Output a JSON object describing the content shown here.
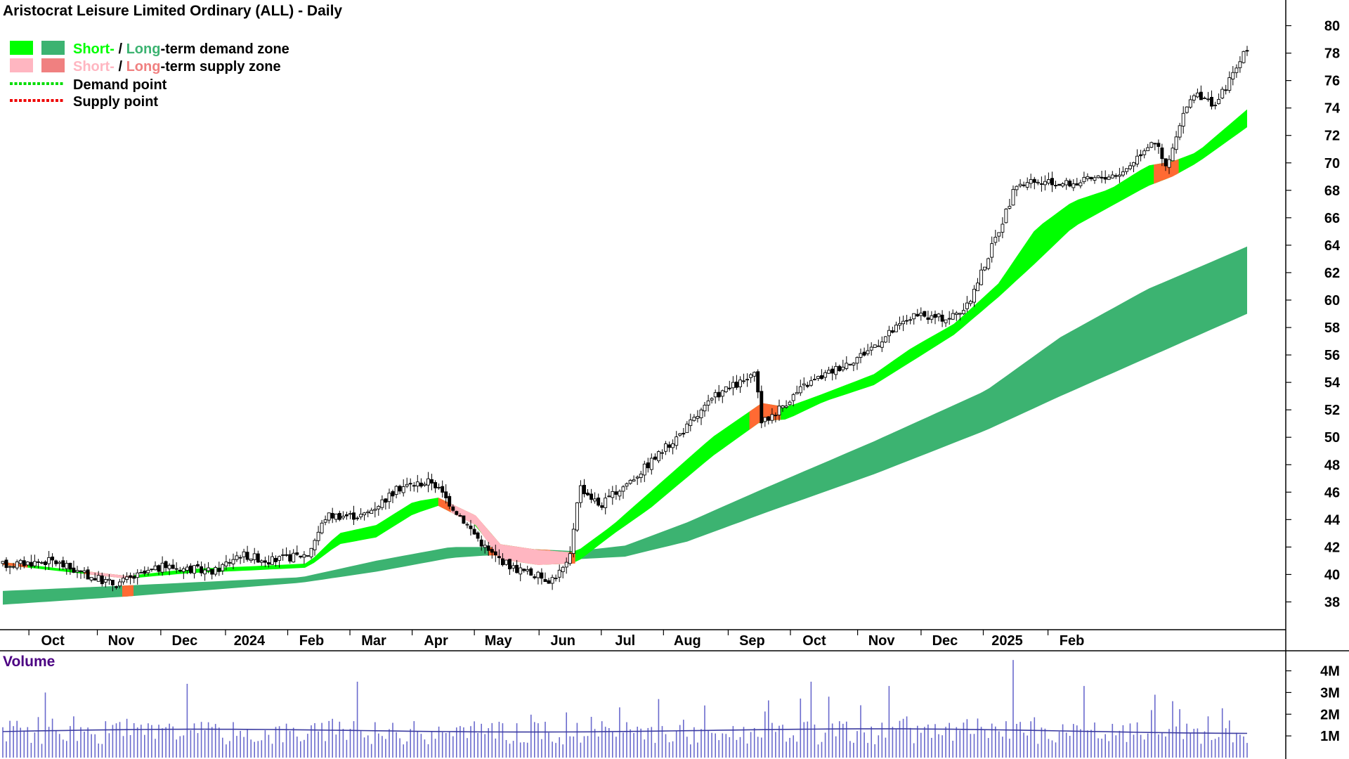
{
  "title": "Aristocrat Leisure Limited Ordinary (ALL) - Daily",
  "legend": {
    "demand_zone": {
      "short": "Short-",
      "slash": " / ",
      "long": "Long",
      "rest": "-term demand zone"
    },
    "supply_zone": {
      "short": "Short-",
      "slash": " / ",
      "long": "Long",
      "rest": "-term supply zone"
    },
    "demand_point": "Demand point",
    "supply_point": "Supply point"
  },
  "colors": {
    "short_demand": "#00ff00",
    "long_demand": "#3cb371",
    "short_supply": "#ffb6c1",
    "long_supply": "#f08080",
    "orange_supply": "#ff6a33",
    "demand_point": "#00dd00",
    "supply_point": "#ee0000",
    "volume_bar": "#6a6acd",
    "volume_avg": "#3c3ca0"
  },
  "chart_data": {
    "type": "candlestick",
    "ylim": [
      37,
      81
    ],
    "y_ticks": [
      38,
      40,
      42,
      44,
      46,
      48,
      50,
      52,
      54,
      56,
      58,
      60,
      62,
      64,
      66,
      68,
      70,
      72,
      74,
      76,
      78,
      80
    ],
    "x_tick_labels": [
      "Oct",
      "Nov",
      "Dec",
      "2024",
      "Feb",
      "Mar",
      "Apr",
      "May",
      "Jun",
      "Jul",
      "Aug",
      "Sep",
      "Oct",
      "Nov",
      "Dec",
      "2025",
      "Feb"
    ],
    "price_path": [
      {
        "t": 0,
        "v": 40.7
      },
      {
        "t": 0.04,
        "v": 41.0
      },
      {
        "t": 0.065,
        "v": 40.0
      },
      {
        "t": 0.09,
        "v": 39.3
      },
      {
        "t": 0.13,
        "v": 40.6
      },
      {
        "t": 0.17,
        "v": 40.2
      },
      {
        "t": 0.19,
        "v": 41.5
      },
      {
        "t": 0.215,
        "v": 41.0
      },
      {
        "t": 0.245,
        "v": 41.5
      },
      {
        "t": 0.26,
        "v": 44.3
      },
      {
        "t": 0.29,
        "v": 44.3
      },
      {
        "t": 0.32,
        "v": 46.4
      },
      {
        "t": 0.345,
        "v": 46.8
      },
      {
        "t": 0.37,
        "v": 44.0
      },
      {
        "t": 0.39,
        "v": 41.7
      },
      {
        "t": 0.41,
        "v": 40.5
      },
      {
        "t": 0.44,
        "v": 39.6
      },
      {
        "t": 0.455,
        "v": 40.8
      },
      {
        "t": 0.463,
        "v": 46.5
      },
      {
        "t": 0.48,
        "v": 45.0
      },
      {
        "t": 0.51,
        "v": 47.3
      },
      {
        "t": 0.545,
        "v": 50.3
      },
      {
        "t": 0.575,
        "v": 53.2
      },
      {
        "t": 0.605,
        "v": 54.5
      },
      {
        "t": 0.61,
        "v": 51.0
      },
      {
        "t": 0.645,
        "v": 53.8
      },
      {
        "t": 0.69,
        "v": 56.0
      },
      {
        "t": 0.73,
        "v": 58.8
      },
      {
        "t": 0.76,
        "v": 58.7
      },
      {
        "t": 0.775,
        "v": 59.5
      },
      {
        "t": 0.8,
        "v": 65.0
      },
      {
        "t": 0.815,
        "v": 68.5
      },
      {
        "t": 0.86,
        "v": 68.5
      },
      {
        "t": 0.9,
        "v": 69.3
      },
      {
        "t": 0.925,
        "v": 71.8
      },
      {
        "t": 0.935,
        "v": 69.5
      },
      {
        "t": 0.94,
        "v": 71.0
      },
      {
        "t": 0.955,
        "v": 75.0
      },
      {
        "t": 0.975,
        "v": 74.3
      },
      {
        "t": 1.0,
        "v": 78.3
      }
    ],
    "short_term_zone": [
      {
        "t": 0,
        "top": 40.9,
        "bot": 40.7
      },
      {
        "t": 0.1,
        "top": 39.9,
        "bot": 39.7
      },
      {
        "t": 0.15,
        "top": 40.4,
        "bot": 40.1
      },
      {
        "t": 0.2,
        "top": 40.6,
        "bot": 40.3
      },
      {
        "t": 0.245,
        "top": 40.8,
        "bot": 40.5
      },
      {
        "t": 0.27,
        "top": 43.0,
        "bot": 42.2
      },
      {
        "t": 0.3,
        "top": 43.6,
        "bot": 42.7
      },
      {
        "t": 0.33,
        "top": 45.3,
        "bot": 44.4
      },
      {
        "t": 0.35,
        "top": 45.6,
        "bot": 45.0
      },
      {
        "t": 0.38,
        "top": 44.3,
        "bot": 43.6
      },
      {
        "t": 0.4,
        "top": 42.2,
        "bot": 41.1
      },
      {
        "t": 0.43,
        "top": 41.8,
        "bot": 40.7
      },
      {
        "t": 0.46,
        "top": 41.6,
        "bot": 40.8
      },
      {
        "t": 0.49,
        "top": 43.6,
        "bot": 42.9
      },
      {
        "t": 0.52,
        "top": 46.0,
        "bot": 44.8
      },
      {
        "t": 0.57,
        "top": 50.0,
        "bot": 48.6
      },
      {
        "t": 0.61,
        "top": 52.5,
        "bot": 51.2
      },
      {
        "t": 0.63,
        "top": 52.2,
        "bot": 51.3
      },
      {
        "t": 0.66,
        "top": 53.2,
        "bot": 52.6
      },
      {
        "t": 0.7,
        "top": 54.6,
        "bot": 53.8
      },
      {
        "t": 0.73,
        "top": 56.5,
        "bot": 55.5
      },
      {
        "t": 0.765,
        "top": 58.3,
        "bot": 57.5
      },
      {
        "t": 0.8,
        "top": 61.2,
        "bot": 60.2
      },
      {
        "t": 0.83,
        "top": 65.2,
        "bot": 62.7
      },
      {
        "t": 0.86,
        "top": 67.2,
        "bot": 65.3
      },
      {
        "t": 0.89,
        "top": 68.1,
        "bot": 66.8
      },
      {
        "t": 0.92,
        "top": 69.8,
        "bot": 68.3
      },
      {
        "t": 0.94,
        "top": 70.1,
        "bot": 69.0
      },
      {
        "t": 0.96,
        "top": 70.8,
        "bot": 70.0
      },
      {
        "t": 1.0,
        "top": 73.9,
        "bot": 72.6
      }
    ],
    "short_term_supply_ranges": [
      {
        "from": 0.0,
        "to": 0.02
      },
      {
        "from": 0.065,
        "to": 0.105
      },
      {
        "from": 0.35,
        "to": 0.46
      },
      {
        "from": 0.6,
        "to": 0.625
      },
      {
        "from": 0.925,
        "to": 0.945
      }
    ],
    "short_term_weak_supply_ranges": [
      {
        "from": 0.07,
        "to": 0.105
      },
      {
        "from": 0.36,
        "to": 0.455
      }
    ],
    "long_term_zone": [
      {
        "t": 0,
        "top": 38.8,
        "bot": 37.8
      },
      {
        "t": 0.1,
        "top": 39.2,
        "bot": 38.4
      },
      {
        "t": 0.24,
        "top": 39.8,
        "bot": 39.4
      },
      {
        "t": 0.3,
        "top": 41.0,
        "bot": 40.2
      },
      {
        "t": 0.36,
        "top": 42.0,
        "bot": 41.2
      },
      {
        "t": 0.39,
        "top": 42.0,
        "bot": 41.4
      },
      {
        "t": 0.46,
        "top": 41.7,
        "bot": 41.1
      },
      {
        "t": 0.5,
        "top": 42.1,
        "bot": 41.3
      },
      {
        "t": 0.55,
        "top": 43.8,
        "bot": 42.4
      },
      {
        "t": 0.61,
        "top": 46.2,
        "bot": 44.4
      },
      {
        "t": 0.7,
        "top": 49.7,
        "bot": 47.3
      },
      {
        "t": 0.79,
        "top": 53.4,
        "bot": 50.5
      },
      {
        "t": 0.85,
        "top": 57.3,
        "bot": 53.0
      },
      {
        "t": 0.92,
        "top": 60.8,
        "bot": 55.8
      },
      {
        "t": 1.0,
        "top": 63.9,
        "bot": 59.0
      }
    ],
    "long_term_supply_ranges": [
      {
        "from": 0.096,
        "to": 0.105
      },
      {
        "from": 0.39,
        "to": 0.44
      }
    ],
    "volume": {
      "label": "Volume",
      "y_ticks": [
        "1M",
        "2M",
        "3M",
        "4M"
      ],
      "ylim": [
        0,
        4.6
      ],
      "average": 1.2
    }
  }
}
